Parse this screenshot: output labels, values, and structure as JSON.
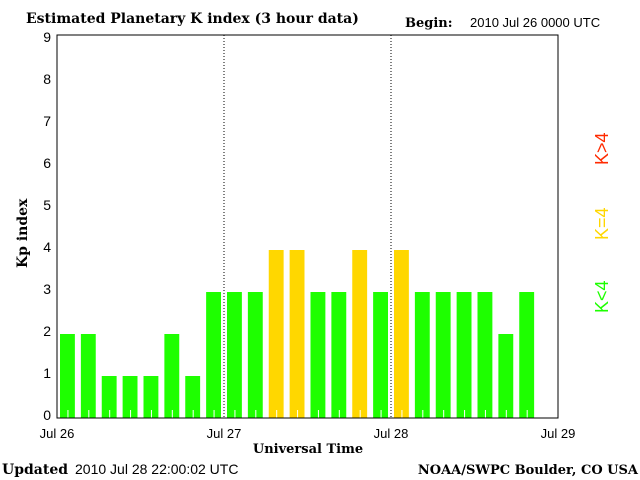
{
  "chart_data": {
    "type": "bar",
    "title": "Estimated Planetary K index (3 hour data)",
    "begin_label": "Begin:",
    "begin_value": "2010 Jul 26 0000 UTC",
    "xlabel": "Universal Time",
    "ylabel": "Kp index",
    "ylim": [
      0,
      9
    ],
    "yticks": [
      "0",
      "1",
      "2",
      "3",
      "4",
      "5",
      "6",
      "7",
      "8",
      "9"
    ],
    "xticks": [
      "Jul 26",
      "Jul 27",
      "Jul 28",
      "Jul 29"
    ],
    "interval_hours": 3,
    "values": [
      2,
      2,
      1,
      1,
      1,
      2,
      1,
      3,
      3,
      3,
      4,
      4,
      3,
      3,
      4,
      3,
      4,
      3,
      3,
      3,
      3,
      2,
      3
    ],
    "colors": {
      "low": "#1eff00",
      "mid": "#ffd700",
      "high": "#ff2a00"
    },
    "legend": [
      {
        "label": "K<4",
        "color": "#1eff00"
      },
      {
        "label": "K=4",
        "color": "#ffd700"
      },
      {
        "label": "K>4",
        "color": "#ff2a00"
      }
    ],
    "legend_placement": "right",
    "grid": false
  },
  "footer": {
    "updated_label": "Updated",
    "updated_value": "2010 Jul 28 22:00:02 UTC",
    "source": "NOAA/SWPC Boulder, CO USA"
  }
}
